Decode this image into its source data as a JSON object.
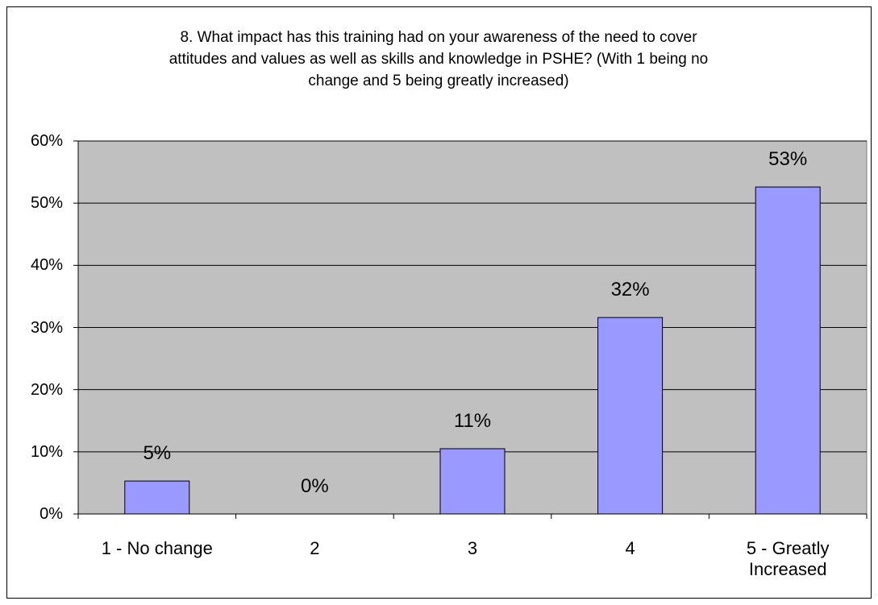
{
  "chart_data": {
    "type": "bar",
    "title": [
      "8. What impact has this training had on your awareness of the need to cover",
      "attitudes and values as well as skills and knowledge in PSHE? (With 1 being no",
      "change and 5 being greatly increased)"
    ],
    "categories": [
      "1 - No change",
      "2",
      "3",
      "4",
      "5 - Greatly Increased"
    ],
    "values": [
      5.3,
      0,
      10.5,
      31.6,
      52.6
    ],
    "value_labels": [
      "5%",
      "0%",
      "11%",
      "32%",
      "53%"
    ],
    "color": "#9999ff",
    "ylim": [
      0,
      60
    ],
    "yticks": [
      {
        "value": 0,
        "label": "0%"
      },
      {
        "value": 10,
        "label": "10%"
      },
      {
        "value": 20,
        "label": "20%"
      },
      {
        "value": 30,
        "label": "30%"
      },
      {
        "value": 40,
        "label": "40%"
      },
      {
        "value": 50,
        "label": "50%"
      },
      {
        "value": 60,
        "label": "60%"
      }
    ],
    "grid": true
  }
}
